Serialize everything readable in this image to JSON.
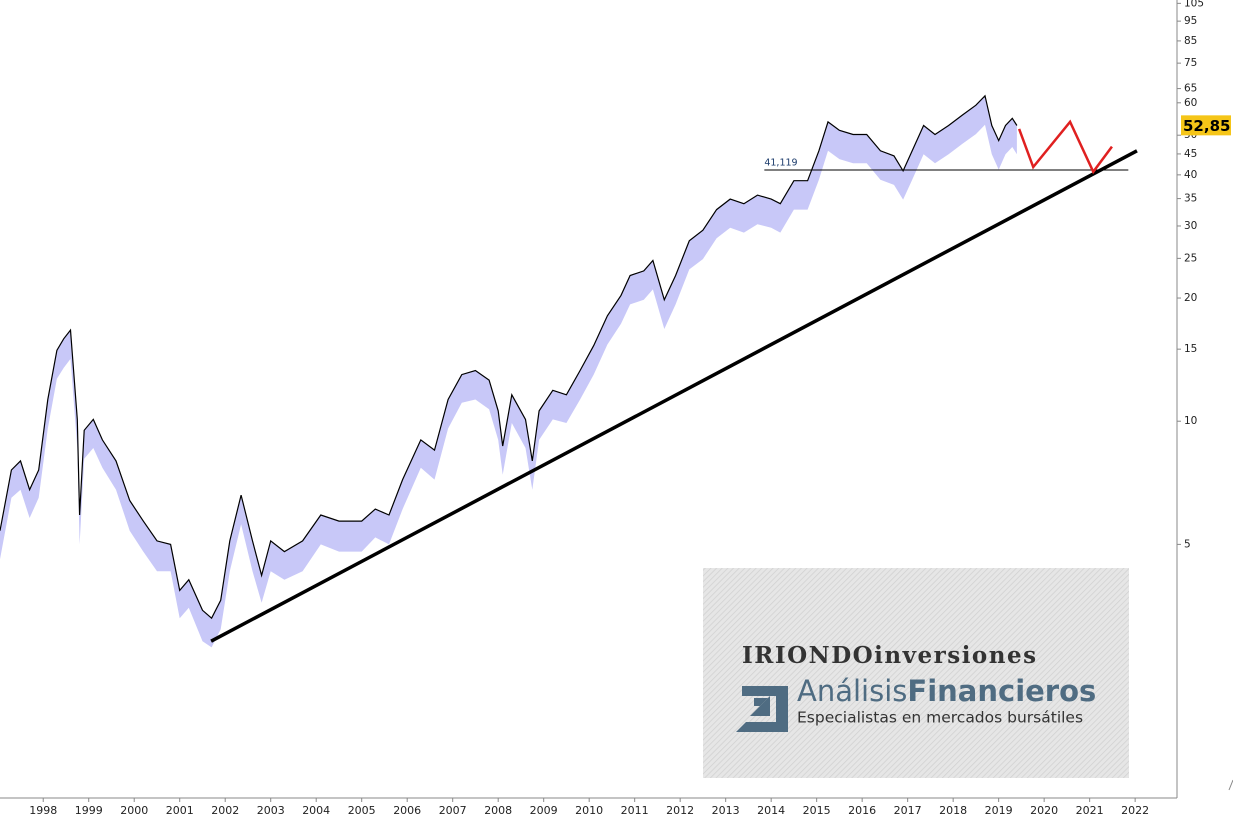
{
  "chart_data": {
    "type": "line",
    "log_scale": true,
    "grid": false,
    "x": [
      1997.05,
      1997.3,
      1997.5,
      1997.7,
      1997.9,
      1998.1,
      1998.3,
      1998.45,
      1998.6,
      1998.75,
      1998.8,
      1998.9,
      1999.1,
      1999.3,
      1999.6,
      1999.9,
      2000.2,
      2000.5,
      2000.8,
      2001.0,
      2001.2,
      2001.5,
      2001.7,
      2001.9,
      2002.1,
      2002.35,
      2002.6,
      2002.8,
      2003.0,
      2003.3,
      2003.7,
      2004.1,
      2004.5,
      2005.0,
      2005.3,
      2005.6,
      2005.9,
      2006.3,
      2006.6,
      2006.9,
      2007.2,
      2007.5,
      2007.8,
      2008.0,
      2008.1,
      2008.3,
      2008.6,
      2008.75,
      2008.9,
      2009.2,
      2009.5,
      2009.8,
      2010.1,
      2010.4,
      2010.7,
      2010.9,
      2011.2,
      2011.4,
      2011.65,
      2011.9,
      2012.2,
      2012.5,
      2012.8,
      2013.1,
      2013.4,
      2013.7,
      2014.0,
      2014.2,
      2014.5,
      2014.8,
      2015.05,
      2015.25,
      2015.5,
      2015.8,
      2016.1,
      2016.4,
      2016.7,
      2016.9,
      2017.1,
      2017.35,
      2017.6,
      2017.9,
      2018.2,
      2018.5,
      2018.7,
      2018.85,
      2019.0,
      2019.15,
      2019.3,
      2019.4
    ],
    "series": [
      {
        "color": "#000000",
        "values": [
          5.4,
          7.6,
          8.0,
          6.8,
          7.6,
          11.3,
          14.9,
          15.9,
          16.7,
          10.1,
          5.9,
          9.5,
          10.1,
          9.0,
          8.0,
          6.4,
          5.7,
          5.1,
          5.0,
          3.86,
          4.1,
          3.45,
          3.3,
          3.65,
          5.1,
          6.6,
          5.1,
          4.2,
          5.1,
          4.8,
          5.1,
          5.9,
          5.7,
          5.7,
          6.1,
          5.9,
          7.2,
          9.0,
          8.5,
          11.3,
          13.0,
          13.3,
          12.6,
          10.6,
          8.7,
          11.6,
          10.1,
          8.0,
          10.6,
          11.9,
          11.6,
          13.3,
          15.3,
          18.1,
          20.3,
          22.7,
          23.3,
          24.7,
          19.8,
          22.7,
          27.6,
          29.3,
          32.9,
          34.9,
          34.0,
          35.7,
          34.9,
          34.0,
          38.7,
          38.7,
          45.8,
          53.9,
          51.4,
          50.2,
          50.2,
          45.8,
          44.5,
          40.9,
          45.8,
          52.8,
          50.2,
          52.8,
          56.0,
          59.2,
          62.4,
          52.8,
          48.5,
          52.8,
          55.0,
          52.8
        ]
      },
      {
        "color": "#c8c8f8",
        "values": [
          4.6,
          6.5,
          6.8,
          5.8,
          6.5,
          9.6,
          12.7,
          13.5,
          14.2,
          8.6,
          5.0,
          8.1,
          8.6,
          7.7,
          6.8,
          5.4,
          4.8,
          4.3,
          4.3,
          3.3,
          3.5,
          2.9,
          2.8,
          3.1,
          4.3,
          5.6,
          4.3,
          3.6,
          4.3,
          4.1,
          4.3,
          5.0,
          4.8,
          4.8,
          5.2,
          5.0,
          6.1,
          7.7,
          7.2,
          9.6,
          11.1,
          11.3,
          10.7,
          9.0,
          7.4,
          9.9,
          8.6,
          6.8,
          9.0,
          10.1,
          9.9,
          11.3,
          13.0,
          15.4,
          17.3,
          19.3,
          19.8,
          21.0,
          16.8,
          19.3,
          23.5,
          24.9,
          28.0,
          29.7,
          28.9,
          30.3,
          29.7,
          28.9,
          32.9,
          32.9,
          38.9,
          45.8,
          43.7,
          42.7,
          42.7,
          38.9,
          37.8,
          34.8,
          38.9,
          44.9,
          42.7,
          44.9,
          47.6,
          50.3,
          53.0,
          44.9,
          41.2,
          44.9,
          46.8,
          44.9
        ]
      }
    ],
    "trendline": {
      "x": [
        2001.69,
        2022.04
      ],
      "values": [
        2.9,
        45.8
      ],
      "color": "#000000"
    },
    "projection": {
      "x": [
        2019.45,
        2019.76,
        2020.57,
        2021.08,
        2021.49
      ],
      "values": [
        51.8,
        41.8,
        53.9,
        40.7,
        46.9
      ],
      "color": "#e02020"
    },
    "level": {
      "value": 41.119,
      "label": "41,119",
      "x": [
        2013.85,
        2021.85
      ]
    },
    "last_price": {
      "value": 52.85,
      "label": "52,85",
      "color": "#f5c518"
    },
    "xlim": [
      1997.05,
      2022.92
    ],
    "ylim": [
      1.2,
      107
    ],
    "yticks": [
      105,
      95,
      85,
      75,
      65,
      60,
      50,
      45,
      40,
      35,
      30,
      25,
      20,
      15,
      10,
      5
    ],
    "xticks": [
      1998,
      1999,
      2000,
      2001,
      2002,
      2003,
      2004,
      2005,
      2006,
      2007,
      2008,
      2009,
      2010,
      2011,
      2012,
      2013,
      2014,
      2015,
      2016,
      2017,
      2018,
      2019,
      2020,
      2021,
      2022
    ],
    "watermark": {
      "brand": "IRIONDOinversiones",
      "name_light": "Análisis",
      "name_bold": "Financieros",
      "tagline": "Especialistas en mercados bursátiles"
    }
  }
}
